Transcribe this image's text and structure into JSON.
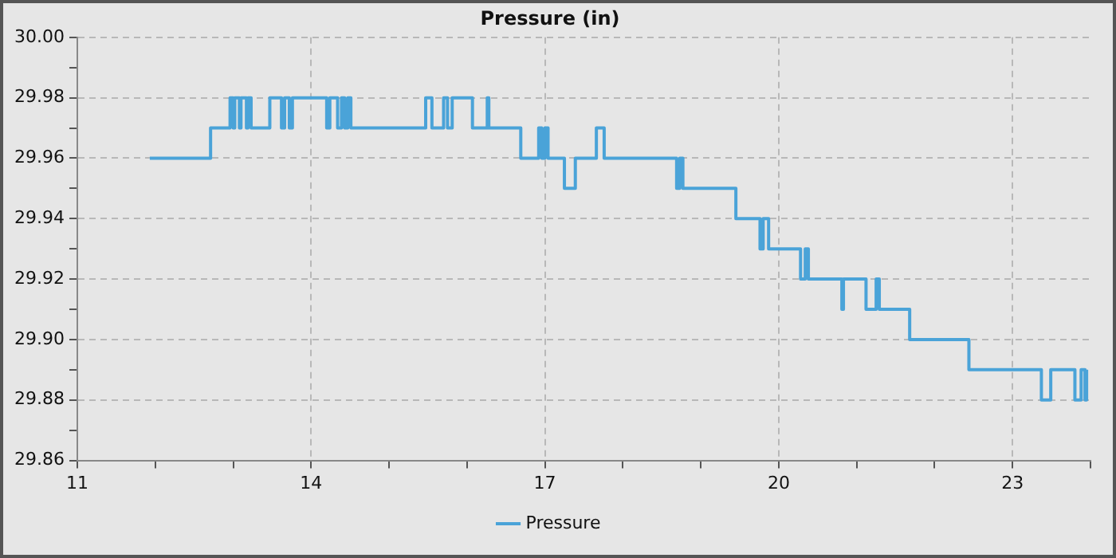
{
  "chart_data": {
    "type": "step",
    "title": "Pressure (in)",
    "legend": "bottom",
    "grid": true,
    "marker": "none",
    "xlim": [
      11,
      24
    ],
    "xticks": [
      11,
      {
        "value": 12,
        "label": null
      },
      {
        "value": 13,
        "label": null
      },
      14,
      {
        "value": 15,
        "label": null
      },
      {
        "value": 16,
        "label": null
      },
      17,
      {
        "value": 18,
        "label": null
      },
      {
        "value": 19,
        "label": null
      },
      20,
      {
        "value": 21,
        "label": null
      },
      {
        "value": 22,
        "label": null
      },
      23,
      {
        "value": 24,
        "label": null
      }
    ],
    "ylim": [
      29.86,
      30.0
    ],
    "yticks": [
      {
        "value": 29.86,
        "label": "29.86"
      },
      {
        "value": 29.87,
        "label": null
      },
      {
        "value": 29.88,
        "label": "29.88"
      },
      {
        "value": 29.89,
        "label": null
      },
      {
        "value": 29.9,
        "label": "29.90"
      },
      {
        "value": 29.91,
        "label": null
      },
      {
        "value": 29.92,
        "label": "29.92"
      },
      {
        "value": 29.93,
        "label": null
      },
      {
        "value": 29.94,
        "label": "29.94"
      },
      {
        "value": 29.95,
        "label": null
      },
      {
        "value": 29.96,
        "label": "29.96"
      },
      {
        "value": 29.97,
        "label": null
      },
      {
        "value": 29.98,
        "label": "29.98"
      },
      {
        "value": 29.99,
        "label": null
      },
      {
        "value": 30.0,
        "label": "30.00"
      }
    ],
    "series": [
      {
        "name": "Pressure",
        "color": "#4aa3d8",
        "x": [
          11.93,
          12.71,
          12.96,
          13.0,
          13.02,
          13.08,
          13.1,
          13.17,
          13.19,
          13.23,
          13.47,
          13.62,
          13.66,
          13.72,
          13.76,
          14.2,
          14.24,
          14.34,
          14.39,
          14.43,
          14.47,
          14.51,
          15.47,
          15.55,
          15.7,
          15.75,
          15.81,
          16.07,
          16.26,
          16.28,
          16.69,
          16.92,
          16.96,
          17.0,
          17.04,
          17.25,
          17.39,
          17.66,
          17.76,
          18.69,
          18.73,
          18.77,
          19.45,
          19.76,
          19.8,
          19.87,
          20.28,
          20.34,
          20.38,
          20.81,
          20.83,
          21.12,
          21.25,
          21.29,
          21.68,
          22.44,
          23.37,
          23.49,
          23.8,
          23.88,
          23.93,
          23.95
        ],
        "values": [
          29.96,
          29.97,
          29.98,
          29.97,
          29.98,
          29.97,
          29.98,
          29.97,
          29.98,
          29.97,
          29.98,
          29.97,
          29.98,
          29.97,
          29.98,
          29.97,
          29.98,
          29.97,
          29.98,
          29.97,
          29.98,
          29.97,
          29.98,
          29.97,
          29.98,
          29.97,
          29.98,
          29.97,
          29.98,
          29.97,
          29.96,
          29.97,
          29.96,
          29.97,
          29.96,
          29.95,
          29.96,
          29.97,
          29.96,
          29.95,
          29.96,
          29.95,
          29.94,
          29.93,
          29.94,
          29.93,
          29.92,
          29.93,
          29.92,
          29.91,
          29.92,
          29.91,
          29.92,
          29.91,
          29.9,
          29.89,
          29.88,
          29.89,
          29.88,
          29.89,
          29.88,
          29.89
        ]
      }
    ]
  }
}
